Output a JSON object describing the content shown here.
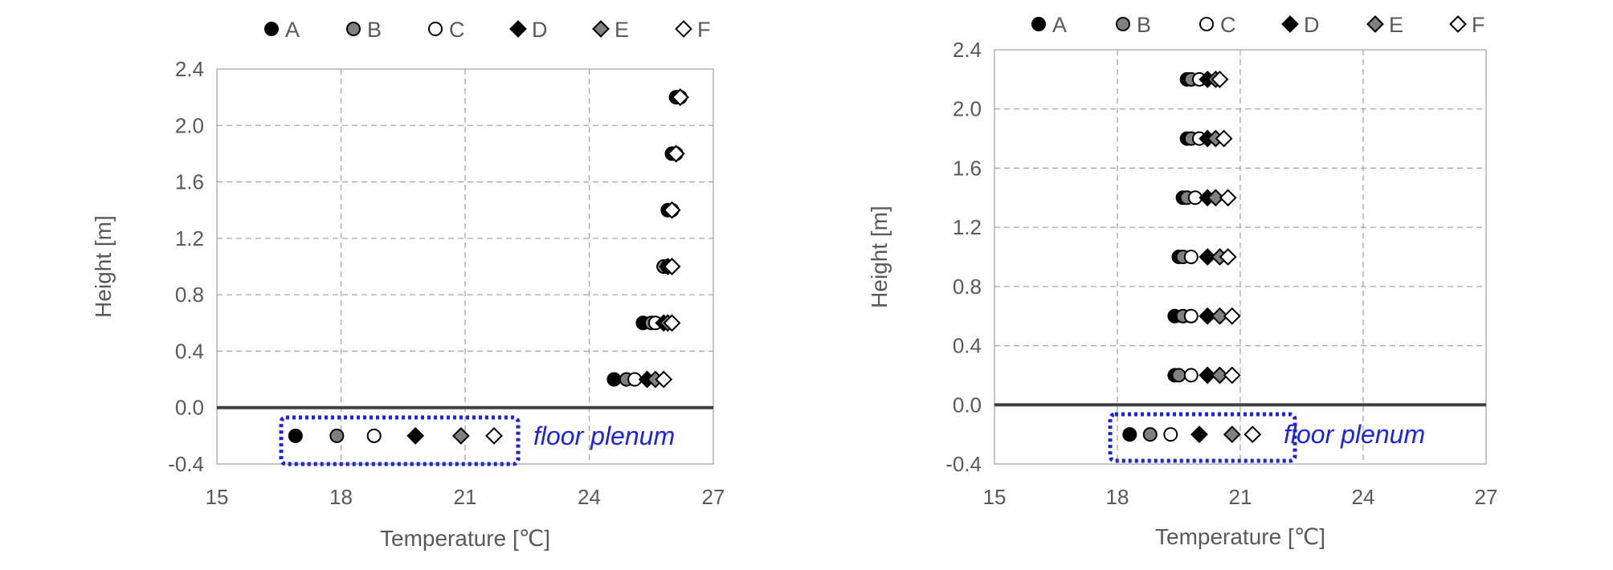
{
  "chart_data": [
    {
      "type": "scatter",
      "title": "",
      "xlabel": "Temperature [℃]",
      "ylabel": "Height [m]",
      "xlim": [
        15,
        27
      ],
      "ylim": [
        -0.4,
        2.4
      ],
      "xticks": [
        "15",
        "18",
        "21",
        "24",
        "27"
      ],
      "yticks": [
        "-0.4",
        "0.0",
        "0.4",
        "0.8",
        "1.2",
        "1.6",
        "2.0",
        "2.4"
      ],
      "grid": true,
      "legend_position": "top",
      "annotation": "floor plenum",
      "series": [
        {
          "name": "A",
          "marker": "circle",
          "fill": "#000000",
          "x": [
            24.6,
            25.3,
            25.8,
            25.9,
            26.0,
            26.1,
            16.9
          ],
          "y": [
            0.2,
            0.6,
            1.0,
            1.4,
            1.8,
            2.2,
            -0.2
          ]
        },
        {
          "name": "B",
          "marker": "circle",
          "fill": "#808080",
          "x": [
            24.9,
            25.5,
            25.8,
            26.0,
            26.1,
            26.2,
            17.9
          ],
          "y": [
            0.2,
            0.6,
            1.0,
            1.4,
            1.8,
            2.2,
            -0.2
          ]
        },
        {
          "name": "C",
          "marker": "circle",
          "fill": "#ffffff",
          "x": [
            25.1,
            25.6,
            25.9,
            26.0,
            26.1,
            26.2,
            18.8
          ],
          "y": [
            0.2,
            0.6,
            1.0,
            1.4,
            1.8,
            2.2,
            -0.2
          ]
        },
        {
          "name": "D",
          "marker": "diamond",
          "fill": "#000000",
          "x": [
            25.4,
            25.8,
            25.9,
            26.0,
            26.1,
            26.2,
            19.8
          ],
          "y": [
            0.2,
            0.6,
            1.0,
            1.4,
            1.8,
            2.2,
            -0.2
          ]
        },
        {
          "name": "E",
          "marker": "diamond",
          "fill": "#808080",
          "x": [
            25.6,
            25.9,
            26.0,
            26.0,
            26.1,
            26.2,
            20.9
          ],
          "y": [
            0.2,
            0.6,
            1.0,
            1.4,
            1.8,
            2.2,
            -0.2
          ]
        },
        {
          "name": "F",
          "marker": "diamond",
          "fill": "#ffffff",
          "x": [
            25.8,
            26.0,
            26.0,
            26.0,
            26.1,
            26.2,
            21.7
          ],
          "y": [
            0.2,
            0.6,
            1.0,
            1.4,
            1.8,
            2.2,
            -0.2
          ]
        }
      ]
    },
    {
      "type": "scatter",
      "title": "",
      "xlabel": "Temperature [℃]",
      "ylabel": "Height [m]",
      "xlim": [
        15,
        27
      ],
      "ylim": [
        -0.4,
        2.4
      ],
      "xticks": [
        "15",
        "18",
        "21",
        "24",
        "27"
      ],
      "yticks": [
        "-0.4",
        "0.0",
        "0.4",
        "0.8",
        "1.2",
        "1.6",
        "2.0",
        "2.4"
      ],
      "grid": true,
      "legend_position": "top",
      "annotation": "floor plenum",
      "series": [
        {
          "name": "A",
          "marker": "circle",
          "fill": "#000000",
          "x": [
            19.4,
            19.4,
            19.5,
            19.6,
            19.7,
            19.7,
            18.3
          ],
          "y": [
            0.2,
            0.6,
            1.0,
            1.4,
            1.8,
            2.2,
            -0.2
          ]
        },
        {
          "name": "B",
          "marker": "circle",
          "fill": "#808080",
          "x": [
            19.5,
            19.6,
            19.6,
            19.7,
            19.8,
            19.8,
            18.8
          ],
          "y": [
            0.2,
            0.6,
            1.0,
            1.4,
            1.8,
            2.2,
            -0.2
          ]
        },
        {
          "name": "C",
          "marker": "circle",
          "fill": "#ffffff",
          "x": [
            19.8,
            19.8,
            19.8,
            19.9,
            20.0,
            20.0,
            19.3
          ],
          "y": [
            0.2,
            0.6,
            1.0,
            1.4,
            1.8,
            2.2,
            -0.2
          ]
        },
        {
          "name": "D",
          "marker": "diamond",
          "fill": "#000000",
          "x": [
            20.2,
            20.2,
            20.2,
            20.2,
            20.2,
            20.2,
            20.0
          ],
          "y": [
            0.2,
            0.6,
            1.0,
            1.4,
            1.8,
            2.2,
            -0.2
          ]
        },
        {
          "name": "E",
          "marker": "diamond",
          "fill": "#808080",
          "x": [
            20.5,
            20.5,
            20.5,
            20.4,
            20.4,
            20.4,
            20.8
          ],
          "y": [
            0.2,
            0.6,
            1.0,
            1.4,
            1.8,
            2.2,
            -0.2
          ]
        },
        {
          "name": "F",
          "marker": "diamond",
          "fill": "#ffffff",
          "x": [
            20.8,
            20.8,
            20.7,
            20.7,
            20.6,
            20.5,
            21.3
          ],
          "y": [
            0.2,
            0.6,
            1.0,
            1.4,
            1.8,
            2.2,
            -0.2
          ]
        }
      ]
    }
  ]
}
